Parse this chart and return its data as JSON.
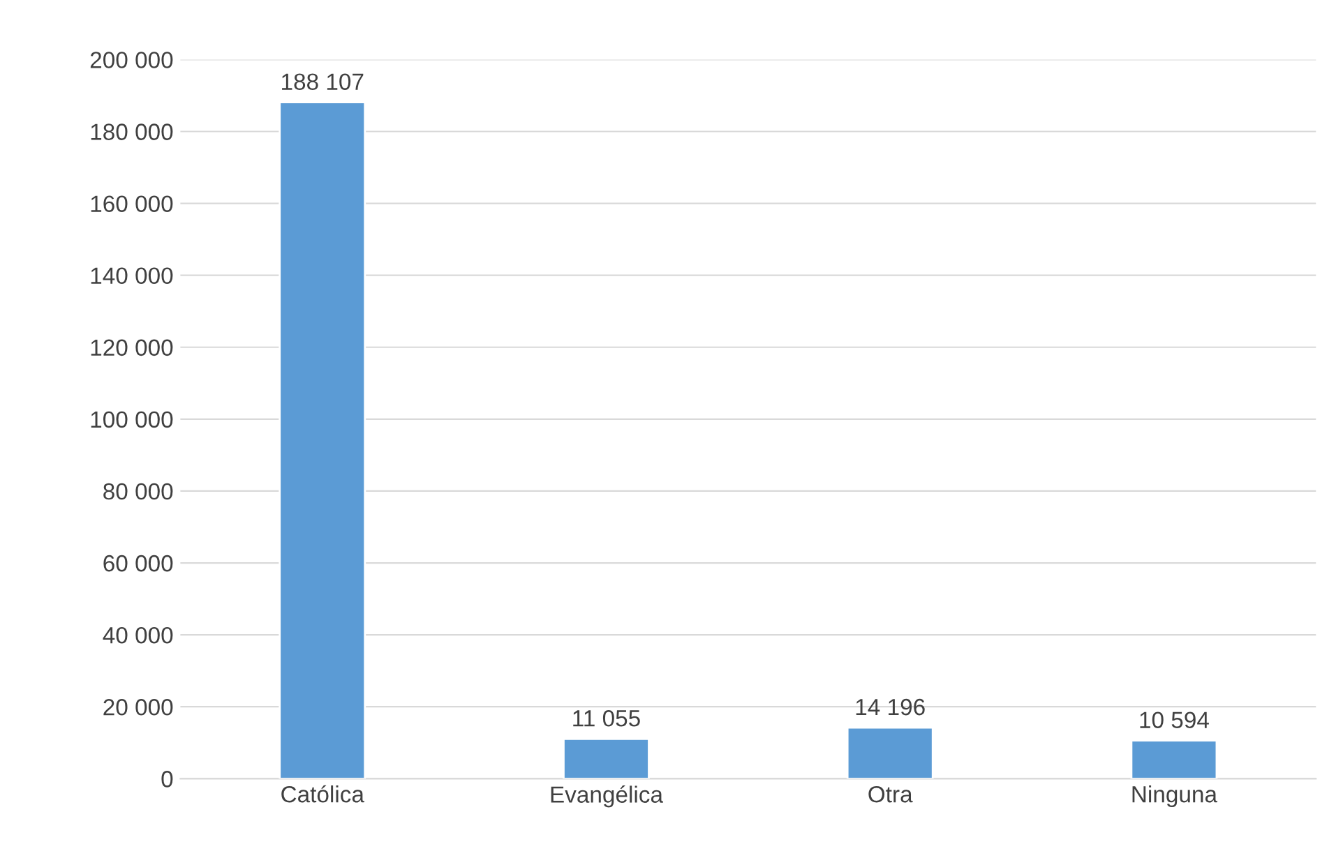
{
  "chart_data": {
    "type": "bar",
    "categories": [
      "Católica",
      "Evangélica",
      "Otra",
      "Ninguna"
    ],
    "values": [
      188107,
      11055,
      14196,
      10594
    ],
    "color": "#5b9bd5",
    "value_labels": [
      "188 107",
      "11 055",
      "14 196",
      "10 594"
    ],
    "ylim": [
      0,
      200000
    ],
    "yticks": [
      {
        "value": 0,
        "label": "0"
      },
      {
        "value": 20000,
        "label": "20 000"
      },
      {
        "value": 40000,
        "label": "40 000"
      },
      {
        "value": 60000,
        "label": "60 000"
      },
      {
        "value": 80000,
        "label": "80 000"
      },
      {
        "value": 100000,
        "label": "100 000"
      },
      {
        "value": 120000,
        "label": "120 000"
      },
      {
        "value": 140000,
        "label": "140 000"
      },
      {
        "value": 160000,
        "label": "160 000"
      },
      {
        "value": 180000,
        "label": "180 000"
      },
      {
        "value": 200000,
        "label": "200 000"
      }
    ],
    "grid": "y"
  }
}
